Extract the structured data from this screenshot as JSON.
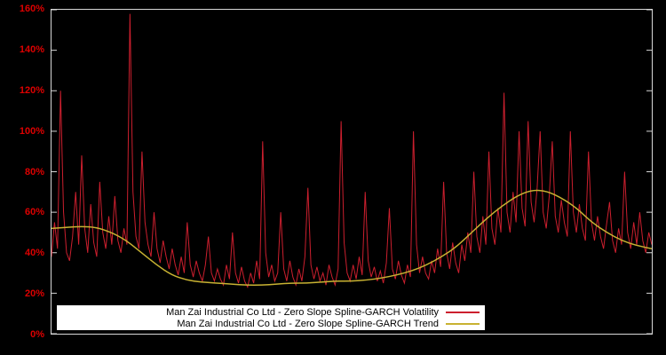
{
  "chart_data": {
    "type": "line",
    "title": "",
    "xlabel": "",
    "ylabel": "",
    "ylim": [
      0,
      160
    ],
    "yticks": [
      0,
      20,
      40,
      60,
      80,
      100,
      120,
      140,
      160
    ],
    "ytick_labels": [
      "0%",
      "20%",
      "40%",
      "60%",
      "80%",
      "100%",
      "120%",
      "140%",
      "160%"
    ],
    "grid": false,
    "legend_position": "bottom-center",
    "background_color": "#000000",
    "border_color": "#d8d8d8",
    "axis_label_color": "#dd0000",
    "series": [
      {
        "name": "Man Zai Industrial Co Ltd - Zero Slope Spline-GARCH Volatility",
        "color": "#cc1f2e",
        "stroke_width": 1,
        "values": [
          38,
          55,
          42,
          120,
          60,
          40,
          36,
          48,
          70,
          44,
          88,
          52,
          40,
          64,
          45,
          38,
          75,
          50,
          42,
          58,
          44,
          68,
          46,
          40,
          52,
          44,
          158,
          70,
          48,
          42,
          90,
          55,
          44,
          38,
          60,
          42,
          35,
          46,
          38,
          32,
          42,
          34,
          29,
          38,
          30,
          55,
          34,
          28,
          36,
          30,
          26,
          34,
          48,
          30,
          26,
          32,
          27,
          24,
          34,
          27,
          50,
          30,
          25,
          33,
          26,
          23,
          30,
          25,
          36,
          27,
          95,
          40,
          28,
          34,
          26,
          30,
          60,
          32,
          26,
          36,
          28,
          24,
          32,
          26,
          38,
          72,
          34,
          27,
          33,
          26,
          30,
          24,
          34,
          28,
          24,
          32,
          105,
          45,
          30,
          26,
          34,
          27,
          38,
          29,
          70,
          36,
          28,
          33,
          26,
          31,
          25,
          35,
          62,
          32,
          27,
          36,
          29,
          25,
          34,
          28,
          100,
          44,
          30,
          38,
          30,
          27,
          36,
          30,
          42,
          33,
          75,
          40,
          32,
          45,
          35,
          30,
          44,
          36,
          50,
          40,
          80,
          48,
          40,
          58,
          44,
          90,
          52,
          44,
          62,
          50,
          119,
          60,
          50,
          70,
          55,
          100,
          62,
          53,
          105,
          65,
          55,
          72,
          100,
          60,
          52,
          68,
          95,
          58,
          50,
          66,
          55,
          48,
          100,
          60,
          50,
          64,
          52,
          46,
          90,
          55,
          46,
          58,
          48,
          42,
          54,
          65,
          46,
          40,
          52,
          44,
          80,
          50,
          42,
          55,
          44,
          60,
          46,
          40,
          50,
          44
        ]
      },
      {
        "name": "Man Zai Industrial Co Ltd - Zero Slope Spline-GARCH Trend",
        "color": "#c8b232",
        "stroke_width": 1.5,
        "values": [
          52,
          52.5,
          53,
          52.5,
          50,
          46,
          40,
          34,
          29,
          26.5,
          25.5,
          25,
          24.5,
          24,
          24,
          24.5,
          25,
          25,
          25.5,
          26,
          26,
          26.5,
          27.5,
          29,
          31,
          34,
          38,
          43,
          50,
          57,
          63,
          68,
          71,
          70.5,
          67,
          62,
          55,
          50,
          46,
          43.5,
          42
        ]
      }
    ]
  }
}
